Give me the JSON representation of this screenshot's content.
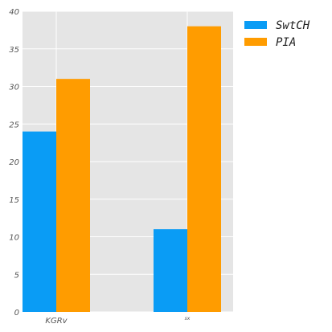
{
  "chart_data": {
    "type": "bar",
    "categories": [
      "KGRv",
      "sx"
    ],
    "series": [
      {
        "name": "SwtCH",
        "values": [
          24,
          11
        ],
        "color": "#0a9cf5"
      },
      {
        "name": "PIA",
        "values": [
          31,
          38
        ],
        "color": "#ff9c00"
      }
    ],
    "title": "",
    "xlabel": "",
    "ylabel": "",
    "ylim": [
      0,
      40
    ],
    "yticks": [
      0,
      5,
      10,
      15,
      20,
      25,
      30,
      35,
      40
    ],
    "grid": true,
    "background": "#e5e5e5",
    "legend_position": "outside-top-right"
  }
}
